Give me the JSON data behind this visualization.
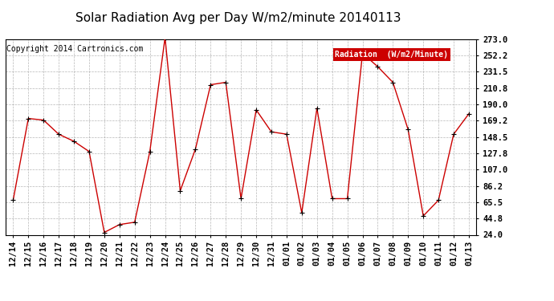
{
  "title": "Solar Radiation Avg per Day W/m2/minute 20140113",
  "copyright": "Copyright 2014 Cartronics.com",
  "legend_label": "Radiation  (W/m2/Minute)",
  "x_labels": [
    "12/14",
    "12/15",
    "12/16",
    "12/17",
    "12/18",
    "12/19",
    "12/20",
    "12/21",
    "12/22",
    "12/23",
    "12/24",
    "12/25",
    "12/26",
    "12/27",
    "12/28",
    "12/29",
    "12/30",
    "12/31",
    "01/01",
    "01/02",
    "01/03",
    "01/04",
    "01/05",
    "01/06",
    "01/07",
    "01/08",
    "01/09",
    "01/10",
    "01/11",
    "01/12",
    "01/13"
  ],
  "y_values": [
    68,
    172,
    170,
    152,
    143,
    130,
    27,
    37,
    40,
    130,
    275,
    80,
    133,
    215,
    218,
    70,
    183,
    155,
    152,
    52,
    185,
    70,
    70,
    255,
    238,
    218,
    158,
    48,
    68,
    152,
    178
  ],
  "y_ticks": [
    24.0,
    44.8,
    65.5,
    86.2,
    107.0,
    127.8,
    148.5,
    169.2,
    190.0,
    210.8,
    231.5,
    252.2,
    273.0
  ],
  "ylim": [
    24.0,
    273.0
  ],
  "line_color": "#cc0000",
  "marker_color": "#000000",
  "background_color": "#ffffff",
  "plot_bg_color": "#ffffff",
  "grid_color": "#999999",
  "legend_bg": "#cc0000",
  "legend_text_color": "#ffffff",
  "title_fontsize": 11,
  "copyright_fontsize": 7,
  "tick_fontsize": 7.5,
  "legend_fontsize": 7
}
